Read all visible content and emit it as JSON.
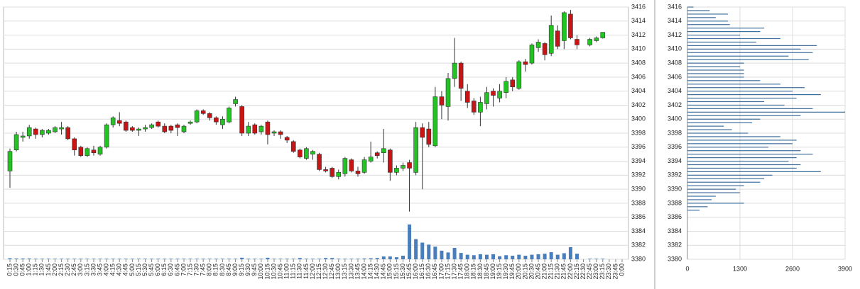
{
  "chart_data": [
    {
      "type": "candlestick",
      "categories": [
        "0:15",
        "0:30",
        "0:45",
        "1:00",
        "1:15",
        "1:30",
        "1:45",
        "2:00",
        "2:15",
        "2:30",
        "2:45",
        "3:00",
        "3:15",
        "3:30",
        "3:45",
        "4:00",
        "4:15",
        "4:30",
        "4:45",
        "5:00",
        "5:15",
        "5:30",
        "5:45",
        "6:00",
        "6:15",
        "6:30",
        "6:45",
        "7:00",
        "7:15",
        "7:30",
        "7:45",
        "8:00",
        "8:15",
        "8:30",
        "8:45",
        "9:00",
        "9:15",
        "9:30",
        "9:45",
        "10:00",
        "10:15",
        "10:30",
        "10:45",
        "11:00",
        "11:15",
        "11:30",
        "11:45",
        "12:00",
        "12:15",
        "12:30",
        "12:45",
        "13:00",
        "13:15",
        "13:30",
        "13:45",
        "14:00",
        "14:15",
        "14:30",
        "14:45",
        "15:00",
        "15:15",
        "15:30",
        "15:45",
        "16:00",
        "16:15",
        "16:30",
        "16:45",
        "17:00",
        "17:15",
        "17:30",
        "17:45",
        "18:00",
        "18:15",
        "18:30",
        "18:45",
        "19:00",
        "19:15",
        "19:30",
        "19:45",
        "20:00",
        "20:15",
        "20:30",
        "20:45",
        "21:00",
        "21:15",
        "21:30",
        "21:45",
        "22:00",
        "22:15",
        "22:30",
        "22:45",
        "23:00",
        "23:15",
        "23:30",
        "23:45",
        "0:00"
      ],
      "open": [
        3392.6,
        3395.6,
        3397.4,
        3397.6,
        3398.6,
        3397.8,
        3398,
        3398.2,
        3398.6,
        3398.8,
        3397.2,
        3396,
        3394.8,
        3395.6,
        3395,
        3396,
        3399.2,
        3399.8,
        3399.6,
        3398.8,
        3398.4,
        3398.6,
        3398.8,
        3399.6,
        3399,
        3399,
        3399.2,
        3398.2,
        3399.4,
        3399.6,
        3401.2,
        3400.8,
        3400.2,
        3399.2,
        3399.6,
        3402.2,
        3401.8,
        3398,
        3399.2,
        3398.2,
        3399.6,
        3398,
        3398.2,
        3397.4,
        3396.8,
        3395.6,
        3394.4,
        3395,
        3395,
        3392.8,
        3393,
        3391.8,
        3392.2,
        3394.2,
        3392.6,
        3392.4,
        3394,
        3395.2,
        3395.2,
        3395.6,
        3392.4,
        3393,
        3393.8,
        3392.4,
        3398.8,
        3398.6,
        3396.2,
        3403.2,
        3401.8,
        3405.8,
        3408,
        3404,
        3402.6,
        3401,
        3402.2,
        3404,
        3403,
        3403.8,
        3405.6,
        3404.4,
        3408.2,
        3408,
        3410.2,
        3410.8,
        3409.4,
        3412.6,
        3411.2,
        3415,
        3411.4,
        null,
        3410.6,
        3411.2,
        3411.6,
        null,
        null,
        null
      ],
      "high": [
        3395.8,
        3398.2,
        3398.2,
        3399.2,
        3398.8,
        3398.6,
        3398.6,
        3399,
        3399.6,
        3399,
        3397.4,
        3396.2,
        3396,
        3396.2,
        3396.2,
        3399.4,
        3400.4,
        3401,
        3399.8,
        3399,
        3398.8,
        3399.2,
        3399.4,
        3399.8,
        3399.4,
        3399.2,
        3399.4,
        3399.2,
        3399.8,
        3401.4,
        3401.4,
        3401,
        3400.4,
        3400.4,
        3401.8,
        3403.2,
        3402,
        3399.6,
        3399.4,
        3399.2,
        3399.8,
        3398.4,
        3398.4,
        3397.6,
        3397,
        3395.8,
        3396,
        3395.6,
        3395.2,
        3393.2,
        3393.2,
        3392.8,
        3394.6,
        3394.4,
        3393.2,
        3394.6,
        3396.8,
        3395.4,
        3398.6,
        3395.8,
        3393.4,
        3393.8,
        3394.2,
        3399.6,
        3399.4,
        3399.6,
        3404.6,
        3404,
        3406.6,
        3411.6,
        3408.2,
        3405,
        3403,
        3403.2,
        3404.6,
        3404.4,
        3405,
        3406,
        3406,
        3408.4,
        3408.6,
        3410.8,
        3411.4,
        3411,
        3414.8,
        3413.4,
        3415.4,
        3415.6,
        3412,
        null,
        3411.6,
        3411.8,
        3412.4,
        null,
        null,
        null
      ],
      "low": [
        3390.2,
        3395.4,
        3396.8,
        3397.2,
        3397.2,
        3397.4,
        3397.8,
        3398,
        3397.8,
        3397,
        3394.8,
        3394.6,
        3394.6,
        3394.8,
        3394.8,
        3395.8,
        3398.8,
        3399,
        3398.2,
        3398.2,
        3397.6,
        3398.2,
        3398.6,
        3398.8,
        3398,
        3398,
        3397.6,
        3398,
        3399.2,
        3399.4,
        3400.6,
        3399.8,
        3399.2,
        3398.6,
        3399.4,
        3401.8,
        3397.6,
        3397.6,
        3397.8,
        3397.8,
        3396.4,
        3397.6,
        3397.2,
        3396.6,
        3395.2,
        3394.4,
        3394.2,
        3394.2,
        3392.6,
        3392.4,
        3391.6,
        3391.4,
        3391.8,
        3392.4,
        3391.8,
        3392.2,
        3393.8,
        3394.4,
        3393.8,
        3391.2,
        3392,
        3392.6,
        3386.8,
        3392,
        3390,
        3396,
        3396,
        3400,
        3399.8,
        3404.6,
        3402.6,
        3401.6,
        3400.6,
        3399,
        3401.4,
        3401.8,
        3402.4,
        3403,
        3404,
        3404.2,
        3406.8,
        3407.8,
        3409.6,
        3408.4,
        3409,
        3410,
        3410,
        3411.4,
        3410,
        null,
        3410.4,
        3411,
        3411.5,
        null,
        null,
        null
      ],
      "close": [
        3395.4,
        3397.8,
        3397.6,
        3398.8,
        3397.8,
        3398.4,
        3398.4,
        3398.8,
        3398.8,
        3397.2,
        3395.6,
        3394.8,
        3395.8,
        3395.2,
        3396,
        3399.2,
        3400.2,
        3399.4,
        3398.4,
        3398.4,
        3398.6,
        3398.8,
        3399.2,
        3399,
        3398.2,
        3398.4,
        3398.8,
        3399,
        3399.6,
        3401.2,
        3400.8,
        3400.2,
        3399.6,
        3400,
        3401.6,
        3402.8,
        3398,
        3399,
        3398,
        3399,
        3397.8,
        3398.2,
        3397.8,
        3397,
        3395.4,
        3394.6,
        3395.8,
        3395.4,
        3392.8,
        3392.6,
        3391.8,
        3392.4,
        3394.4,
        3392.6,
        3392.2,
        3394.2,
        3394.6,
        3394.8,
        3395.8,
        3392.4,
        3393,
        3393.4,
        3393,
        3398.8,
        3397.4,
        3396.4,
        3403.2,
        3402,
        3405.8,
        3408,
        3404.4,
        3402.4,
        3401,
        3402.4,
        3403.8,
        3403.4,
        3404,
        3405.4,
        3404.6,
        3408.2,
        3407.8,
        3410.6,
        3411,
        3409.2,
        3413.4,
        3410.4,
        3415.2,
        3411.6,
        3410.6,
        null,
        3411.4,
        3411.6,
        3412.4,
        null,
        null,
        null
      ],
      "volume": [
        4,
        3,
        3,
        3,
        2,
        2,
        2,
        2,
        2,
        2,
        2,
        2,
        2,
        2,
        2,
        2,
        2,
        2,
        2,
        2,
        2,
        2,
        2,
        2,
        2,
        2,
        2,
        2,
        2,
        2,
        2,
        2,
        2,
        2,
        2,
        2,
        6,
        2,
        2,
        2,
        6,
        2,
        2,
        2,
        2,
        5,
        2,
        2,
        2,
        5,
        5,
        2,
        2,
        2,
        2,
        3,
        4,
        5,
        11,
        11,
        8,
        14,
        138,
        80,
        66,
        58,
        50,
        34,
        27,
        45,
        25,
        18,
        16,
        20,
        18,
        20,
        12,
        16,
        14,
        18,
        14,
        18,
        20,
        22,
        28,
        18,
        24,
        48,
        22,
        null,
        2,
        2,
        2,
        null,
        null,
        null
      ],
      "up_color": "#22c322",
      "down_color": "#c81414",
      "volume_color": "#4a7ebb",
      "ylim": [
        3380,
        3416
      ],
      "yticks": [
        3380,
        3382,
        3384,
        3386,
        3388,
        3390,
        3392,
        3394,
        3396,
        3398,
        3400,
        3402,
        3404,
        3406,
        3408,
        3410,
        3412,
        3414,
        3416
      ],
      "y2lim": [
        0,
        1000
      ],
      "grid": true
    },
    {
      "type": "barh",
      "y": [
        3416,
        3415.5,
        3415,
        3414.5,
        3414,
        3413.5,
        3413,
        3412.5,
        3412,
        3411.5,
        3411,
        3410.5,
        3410,
        3409.5,
        3409,
        3408.5,
        3408,
        3407.5,
        3407,
        3406.5,
        3406,
        3405.5,
        3405,
        3404.5,
        3404,
        3403.5,
        3403,
        3402.5,
        3402,
        3401.5,
        3401,
        3400.5,
        3400,
        3399.5,
        3399,
        3398.5,
        3398,
        3397.5,
        3397,
        3396.5,
        3396,
        3395.5,
        3395,
        3394.5,
        3394,
        3393.5,
        3393,
        3392.5,
        3392,
        3391.5,
        3391,
        3390.5,
        3390,
        3389.5,
        3389,
        3388.5,
        3388,
        3387.5,
        3387
      ],
      "values": [
        150,
        550,
        1000,
        700,
        1000,
        1050,
        1900,
        1800,
        1300,
        2300,
        1700,
        3200,
        2800,
        3100,
        2500,
        3000,
        1400,
        1300,
        1400,
        1400,
        1400,
        1800,
        2300,
        2900,
        2600,
        3300,
        2700,
        1900,
        2400,
        3100,
        3900,
        2800,
        1800,
        1600,
        900,
        1100,
        1500,
        2300,
        2700,
        2600,
        2000,
        2800,
        3100,
        2700,
        2500,
        2800,
        2700,
        3300,
        2100,
        1900,
        1800,
        1400,
        1200,
        1300,
        700,
        600,
        1400,
        500,
        300
      ],
      "color": "#3f6e9c",
      "xlim": [
        0,
        3900
      ],
      "xticks": [
        0,
        1300,
        2600,
        3900
      ],
      "ylim": [
        3380,
        3416
      ],
      "yticks": [
        3380,
        3382,
        3384,
        3386,
        3388,
        3390,
        3392,
        3394,
        3396,
        3398,
        3400,
        3402,
        3404,
        3406,
        3408,
        3410,
        3412,
        3414,
        3416
      ],
      "grid": true
    }
  ]
}
